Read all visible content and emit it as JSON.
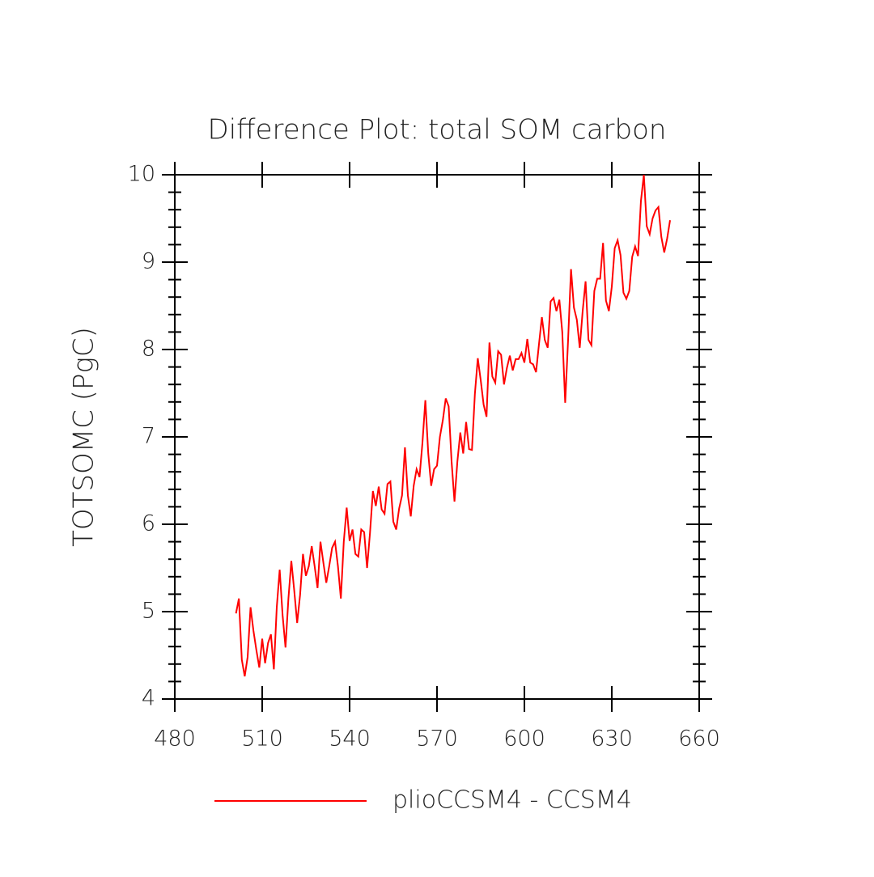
{
  "chart_data": {
    "type": "line",
    "title": "Difference Plot: total SOM carbon",
    "y_label": "TOTSOMC   (PgC)",
    "x": [
      501,
      502,
      503,
      504,
      505,
      506,
      507,
      508,
      509,
      510,
      511,
      512,
      513,
      514,
      515,
      516,
      517,
      518,
      519,
      520,
      521,
      522,
      523,
      524,
      525,
      526,
      527,
      528,
      529,
      530,
      531,
      532,
      533,
      534,
      535,
      536,
      537,
      538,
      539,
      540,
      541,
      542,
      543,
      544,
      545,
      546,
      547,
      548,
      549,
      550,
      551,
      552,
      553,
      554,
      555,
      556,
      557,
      558,
      559,
      560,
      561,
      562,
      563,
      564,
      565,
      566,
      567,
      568,
      569,
      570,
      571,
      572,
      573,
      574,
      575,
      576,
      577,
      578,
      579,
      580,
      581,
      582,
      583,
      584,
      585,
      586,
      587,
      588,
      589,
      590,
      591,
      592,
      593,
      594,
      595,
      596,
      597,
      598,
      599,
      600,
      601,
      602,
      603,
      604,
      605,
      606,
      607,
      608,
      609,
      610,
      611,
      612,
      613,
      614,
      615,
      616,
      617,
      618,
      619,
      620,
      621,
      622,
      623,
      624,
      625,
      626,
      627,
      628,
      629,
      630,
      631,
      632,
      633,
      634,
      635,
      636,
      637,
      638,
      639,
      640,
      641,
      642,
      643,
      644,
      645,
      646,
      647,
      648,
      649,
      650
    ],
    "series": [
      {
        "name": "plioCCSM4 - CCSM4",
        "color": "#ff0000",
        "values": [
          4.98,
          5.15,
          4.45,
          4.26,
          4.48,
          5.05,
          4.78,
          4.56,
          4.36,
          4.69,
          4.41,
          4.64,
          4.74,
          4.34,
          5.05,
          5.48,
          4.96,
          4.59,
          5.15,
          5.58,
          5.24,
          4.87,
          5.19,
          5.66,
          5.41,
          5.52,
          5.75,
          5.52,
          5.27,
          5.8,
          5.56,
          5.33,
          5.52,
          5.73,
          5.8,
          5.52,
          5.15,
          5.8,
          6.19,
          5.81,
          5.94,
          5.66,
          5.63,
          5.94,
          5.91,
          5.5,
          5.9,
          6.38,
          6.21,
          6.43,
          6.17,
          6.12,
          6.46,
          6.49,
          6.03,
          5.94,
          6.18,
          6.33,
          6.88,
          6.33,
          6.09,
          6.44,
          6.63,
          6.54,
          6.93,
          7.42,
          6.81,
          6.44,
          6.63,
          6.67,
          7.0,
          7.19,
          7.44,
          7.35,
          6.72,
          6.26,
          6.72,
          7.05,
          6.81,
          7.17,
          6.86,
          6.85,
          7.49,
          7.9,
          7.65,
          7.37,
          7.23,
          8.08,
          7.69,
          7.62,
          7.98,
          7.94,
          7.6,
          7.79,
          7.93,
          7.76,
          7.89,
          7.89,
          7.96,
          7.85,
          8.12,
          7.85,
          7.83,
          7.74,
          8.06,
          8.37,
          8.11,
          8.02,
          8.55,
          8.59,
          8.44,
          8.57,
          8.2,
          7.39,
          8.11,
          8.92,
          8.48,
          8.34,
          8.02,
          8.44,
          8.78,
          8.11,
          8.05,
          8.67,
          8.81,
          8.81,
          9.22,
          8.56,
          8.44,
          8.72,
          9.16,
          9.25,
          9.08,
          8.65,
          8.58,
          8.67,
          9.06,
          9.18,
          9.07,
          9.7,
          10.0,
          9.41,
          9.32,
          9.5,
          9.59,
          9.63,
          9.29,
          9.11,
          9.27,
          9.48
        ]
      }
    ],
    "xlim": [
      480,
      660
    ],
    "xticks": [
      480,
      510,
      540,
      570,
      600,
      630,
      660
    ],
    "ylim": [
      4,
      10
    ],
    "yticks": [
      4,
      5,
      6,
      7,
      8,
      9,
      10
    ],
    "yminorticks": [
      4.2,
      4.4,
      4.6,
      4.8,
      5.2,
      5.4,
      5.6,
      5.8,
      6.2,
      6.4,
      6.6,
      6.8,
      7.2,
      7.4,
      7.6,
      7.8,
      8.2,
      8.4,
      8.6,
      8.8,
      9.2,
      9.4,
      9.6,
      9.8
    ],
    "legend": "bottom",
    "grid": false
  }
}
